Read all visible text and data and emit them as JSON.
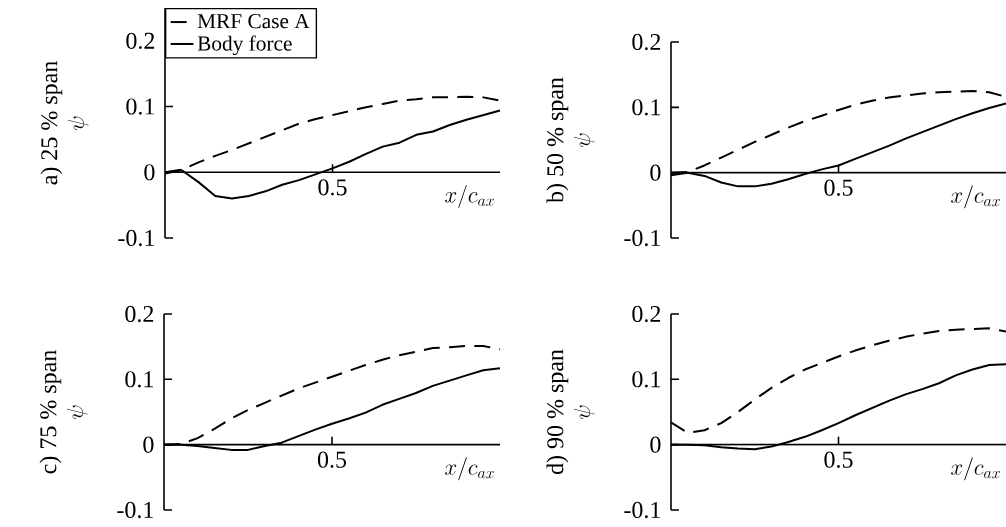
{
  "chart_data": [
    {
      "type": "line",
      "title": "a) 25 % span",
      "ylabel": "\\psi",
      "xlabel": "x/c_{ax}",
      "annotations": [
        "0.5"
      ],
      "ylim": [
        -0.1,
        0.25
      ],
      "yticks": [
        -0.1,
        0,
        0.1,
        0.2
      ],
      "legend": "top left",
      "categories": [
        null,
        null,
        null,
        null,
        null,
        null,
        null,
        null,
        null,
        null,
        null,
        null,
        null,
        null,
        null,
        null,
        null,
        null,
        null,
        null,
        null
      ],
      "series": [
        {
          "name": "MRF Case A",
          "color": "#000000",
          "line_style": "dashed",
          "values": [
            0,
            0.004,
            0.015,
            0.025,
            0.034,
            0.044,
            0.054,
            0.064,
            0.074,
            0.081,
            0.087,
            0.093,
            0.099,
            0.104,
            0.109,
            0.111,
            0.114,
            0.114,
            0.115,
            0.114,
            0.109
          ]
        },
        {
          "name": "Body force",
          "color": "#000000",
          "line_style": "solid",
          "values": [
            -0.002,
            0.003,
            -0.015,
            -0.036,
            -0.04,
            -0.036,
            -0.029,
            -0.019,
            -0.012,
            -0.003,
            0.006,
            0.016,
            0.028,
            0.039,
            0.045,
            0.057,
            0.062,
            0.072,
            0.08,
            0.087,
            0.094
          ]
        }
      ]
    },
    {
      "type": "line",
      "title": "b) 50 % span",
      "ylabel": "\\psi",
      "xlabel": "x/c_{ax}",
      "annotations": [
        "0.5"
      ],
      "ylim": [
        -0.1,
        0.2
      ],
      "yticks": [
        -0.1,
        0,
        0.1,
        0.2
      ],
      "categories": [
        null,
        null,
        null,
        null,
        null,
        null,
        null,
        null,
        null,
        null,
        null,
        null,
        null,
        null,
        null,
        null,
        null,
        null,
        null,
        null,
        null
      ],
      "series": [
        {
          "color": "#000000",
          "line_style": "dashed",
          "values": [
            0,
            0.001,
            0.011,
            0.023,
            0.035,
            0.047,
            0.058,
            0.069,
            0.079,
            0.087,
            0.096,
            0.104,
            0.11,
            0.115,
            0.118,
            0.121,
            0.123,
            0.124,
            0.125,
            0.123,
            0.116
          ]
        },
        {
          "color": "#000000",
          "line_style": "solid",
          "values": [
            -0.004,
            0,
            -0.005,
            -0.015,
            -0.021,
            -0.021,
            -0.017,
            -0.01,
            -0.002,
            0.005,
            0.011,
            0.021,
            0.031,
            0.041,
            0.052,
            0.062,
            0.072,
            0.082,
            0.091,
            0.099,
            0.106
          ]
        }
      ]
    },
    {
      "type": "line",
      "title": "c) 75 % span",
      "ylabel": "\\psi",
      "xlabel": "x/c_{ax}",
      "annotations": [
        "0.5"
      ],
      "ylim": [
        -0.1,
        0.2
      ],
      "yticks": [
        -0.1,
        0,
        0.1,
        0.2
      ],
      "categories": [
        null,
        null,
        null,
        null,
        null,
        null,
        null,
        null,
        null,
        null,
        null,
        null,
        null,
        null,
        null,
        null,
        null,
        null,
        null,
        null,
        null
      ],
      "series": [
        {
          "color": "#000000",
          "line_style": "dashed",
          "values": [
            0,
            0.001,
            0.01,
            0.024,
            0.04,
            0.053,
            0.064,
            0.075,
            0.086,
            0.095,
            0.104,
            0.113,
            0.122,
            0.13,
            0.137,
            0.142,
            0.148,
            0.149,
            0.151,
            0.151,
            0.146
          ]
        },
        {
          "color": "#000000",
          "line_style": "solid",
          "values": [
            0,
            0,
            -0.002,
            -0.005,
            -0.008,
            -0.008,
            -0.002,
            0.003,
            0.013,
            0.023,
            0.032,
            0.04,
            0.049,
            0.061,
            0.07,
            0.079,
            0.09,
            0.098,
            0.106,
            0.114,
            0.117
          ]
        }
      ]
    },
    {
      "type": "line",
      "title": "d) 90 % span",
      "ylabel": "\\psi",
      "xlabel": "x/c_{ax}",
      "annotations": [
        "0.5"
      ],
      "ylim": [
        -0.1,
        0.2
      ],
      "yticks": [
        -0.1,
        0,
        0.1,
        0.2
      ],
      "categories": [
        null,
        null,
        null,
        null,
        null,
        null,
        null,
        null,
        null,
        null,
        null,
        null,
        null,
        null,
        null,
        null,
        null,
        null,
        null,
        null,
        null
      ],
      "series": [
        {
          "color": "#000000",
          "line_style": "dashed",
          "values": [
            0.034,
            0.018,
            0.022,
            0.033,
            0.05,
            0.069,
            0.087,
            0.102,
            0.115,
            0.125,
            0.135,
            0.144,
            0.152,
            0.159,
            0.165,
            0.17,
            0.174,
            0.176,
            0.177,
            0.178,
            0.173
          ]
        },
        {
          "color": "#000000",
          "line_style": "solid",
          "values": [
            0,
            0,
            -0.001,
            -0.004,
            -0.006,
            -0.007,
            -0.003,
            0.004,
            0.012,
            0.022,
            0.033,
            0.045,
            0.056,
            0.067,
            0.077,
            0.085,
            0.094,
            0.106,
            0.115,
            0.122,
            0.123
          ]
        }
      ]
    }
  ]
}
